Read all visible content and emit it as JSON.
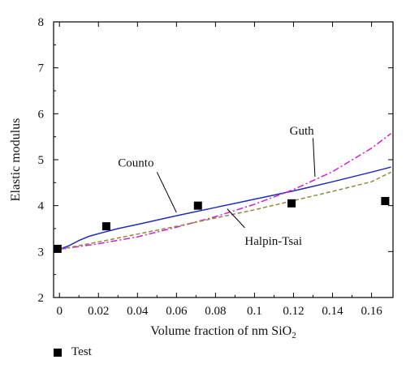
{
  "chart_data": {
    "type": "line",
    "title": "",
    "xlabel": "Volume fraction of nm SiO",
    "xlabel_subscript": "2",
    "ylabel": "Elastic modulus",
    "xlim": [
      -0.003,
      0.171
    ],
    "ylim": [
      2,
      8
    ],
    "x_ticks": [
      0,
      0.02,
      0.04,
      0.06,
      0.08,
      0.1,
      0.12,
      0.14,
      0.16
    ],
    "x_tick_labels": [
      "0",
      "0.02",
      "0.04",
      "0.06",
      "0.08",
      "0.1",
      "0.12",
      "0.14",
      "0.16"
    ],
    "y_ticks": [
      2,
      3,
      4,
      5,
      6,
      7,
      8
    ],
    "y_tick_labels": [
      "2",
      "3",
      "4",
      "5",
      "6",
      "7",
      "8"
    ],
    "grid": false,
    "series": [
      {
        "name": "Counto",
        "kind": "line",
        "color": "#1f2fb5",
        "dash": "solid",
        "points": [
          [
            0,
            3.05
          ],
          [
            0.005,
            3.13
          ],
          [
            0.01,
            3.24
          ],
          [
            0.015,
            3.33
          ],
          [
            0.02,
            3.39
          ],
          [
            0.03,
            3.5
          ],
          [
            0.04,
            3.59
          ],
          [
            0.06,
            3.78
          ],
          [
            0.08,
            3.96
          ],
          [
            0.1,
            4.14
          ],
          [
            0.12,
            4.32
          ],
          [
            0.14,
            4.52
          ],
          [
            0.16,
            4.73
          ],
          [
            0.17,
            4.84
          ]
        ]
      },
      {
        "name": "Guth",
        "kind": "line",
        "color": "#d21fd2",
        "dash": "dashdot",
        "points": [
          [
            0,
            3.05
          ],
          [
            0.02,
            3.17
          ],
          [
            0.04,
            3.32
          ],
          [
            0.06,
            3.53
          ],
          [
            0.08,
            3.76
          ],
          [
            0.1,
            4.03
          ],
          [
            0.12,
            4.35
          ],
          [
            0.14,
            4.74
          ],
          [
            0.16,
            5.25
          ],
          [
            0.17,
            5.57
          ]
        ]
      },
      {
        "name": "Halpin-Tsai",
        "kind": "line",
        "color": "#8f8a3a",
        "dash": "dashed",
        "points": [
          [
            0,
            3.05
          ],
          [
            0.02,
            3.21
          ],
          [
            0.04,
            3.38
          ],
          [
            0.06,
            3.55
          ],
          [
            0.08,
            3.73
          ],
          [
            0.1,
            3.91
          ],
          [
            0.12,
            4.11
          ],
          [
            0.14,
            4.31
          ],
          [
            0.16,
            4.52
          ],
          [
            0.17,
            4.73
          ]
        ]
      },
      {
        "name": "Test",
        "kind": "scatter",
        "color": "#000000",
        "points": [
          [
            -0.001,
            3.06
          ],
          [
            0.024,
            3.55
          ],
          [
            0.071,
            4.0
          ],
          [
            0.119,
            4.05
          ],
          [
            0.167,
            4.1
          ]
        ]
      }
    ],
    "annotations": [
      {
        "text": "Guth",
        "x": 0.118,
        "y": 5.55
      },
      {
        "text": "Counto",
        "x": 0.03,
        "y": 4.85
      },
      {
        "text": "Halpin-Tsai",
        "x": 0.095,
        "y": 3.15
      }
    ],
    "legend": {
      "placement": "bottom-left",
      "entries": [
        "Test"
      ]
    }
  }
}
